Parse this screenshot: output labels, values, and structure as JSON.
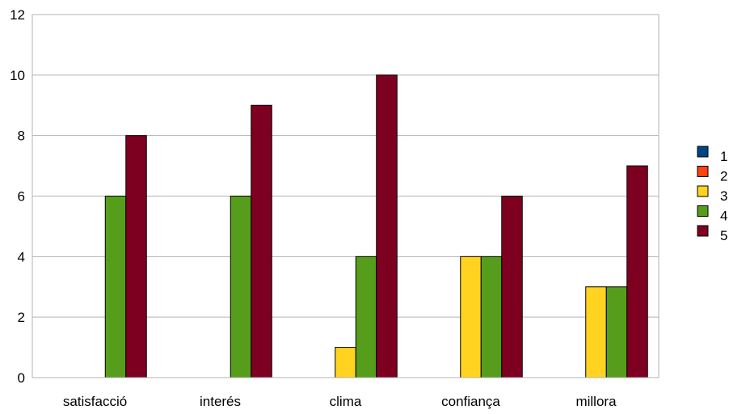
{
  "chart_data": {
    "type": "bar",
    "title": "",
    "xlabel": "",
    "ylabel": "",
    "categories": [
      "satisfacció",
      "interés",
      "clima",
      "confiança",
      "millora"
    ],
    "ylim": [
      0,
      12
    ],
    "yticks": [
      0,
      2,
      4,
      6,
      8,
      10,
      12
    ],
    "grid": "horizontal",
    "legend_position": "right",
    "series": [
      {
        "name": "1",
        "color": "#004586",
        "values": [
          0,
          0,
          0,
          0,
          0
        ]
      },
      {
        "name": "2",
        "color": "#ff420e",
        "values": [
          0,
          0,
          0,
          0,
          0
        ]
      },
      {
        "name": "3",
        "color": "#ffd320",
        "values": [
          0,
          0,
          1,
          4,
          3
        ]
      },
      {
        "name": "4",
        "color": "#579d1c",
        "values": [
          6,
          6,
          4,
          4,
          3
        ]
      },
      {
        "name": "5",
        "color": "#7e0021",
        "values": [
          8,
          9,
          10,
          6,
          7
        ]
      }
    ]
  }
}
